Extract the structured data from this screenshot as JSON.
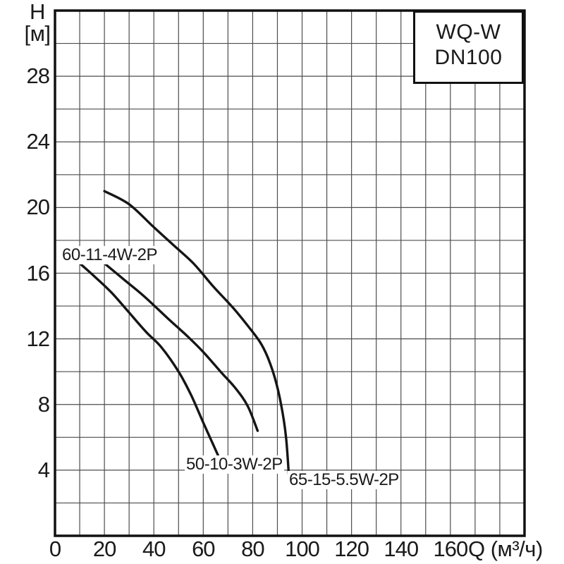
{
  "title_box": {
    "model": "WQ-W",
    "size": "DN100"
  },
  "y_axis_label": {
    "symbol": "H",
    "unit": "[м]"
  },
  "x_axis_unit": "Q (м³/ч)",
  "chart_data": {
    "type": "line",
    "title": "WQ-W DN100",
    "xlabel": "Q (м³/ч)",
    "ylabel": "H [м]",
    "xlim": [
      0,
      190
    ],
    "ylim": [
      0,
      32
    ],
    "x_ticks": [
      0,
      20,
      40,
      60,
      80,
      100,
      120,
      140,
      160
    ],
    "y_ticks": [
      4,
      8,
      12,
      16,
      20,
      24,
      28
    ],
    "x_grid_step": 10,
    "y_grid_step": 2,
    "grid": true,
    "legend_position": "labels-on-curves",
    "line_color": "#151515",
    "grid_color": "#4d4d4d",
    "series": [
      {
        "name": "50-10-3W-2P",
        "points": [
          [
            10,
            16.6
          ],
          [
            16,
            15.8
          ],
          [
            23,
            14.8
          ],
          [
            30,
            13.6
          ],
          [
            37,
            12.4
          ],
          [
            43,
            11.5
          ],
          [
            50,
            10.0
          ],
          [
            55,
            8.6
          ],
          [
            60,
            6.9
          ],
          [
            66,
            4.9
          ]
        ]
      },
      {
        "name": "60-11-4W-2P",
        "points": [
          [
            20,
            16.6
          ],
          [
            28,
            15.6
          ],
          [
            36,
            14.6
          ],
          [
            46,
            13.2
          ],
          [
            54,
            12.1
          ],
          [
            60,
            11.2
          ],
          [
            67,
            10.0
          ],
          [
            73,
            9.0
          ],
          [
            78,
            7.9
          ],
          [
            82,
            6.4
          ]
        ]
      },
      {
        "name": "65-15-5.5W-2P",
        "points": [
          [
            20,
            21.0
          ],
          [
            30,
            20.2
          ],
          [
            40,
            18.8
          ],
          [
            48,
            17.7
          ],
          [
            56,
            16.6
          ],
          [
            64,
            15.2
          ],
          [
            72,
            13.9
          ],
          [
            78,
            12.8
          ],
          [
            83,
            11.8
          ],
          [
            86,
            10.9
          ],
          [
            89,
            9.6
          ],
          [
            91.5,
            8.0
          ],
          [
            93.5,
            6.0
          ],
          [
            94.8,
            3.3
          ]
        ]
      }
    ]
  }
}
